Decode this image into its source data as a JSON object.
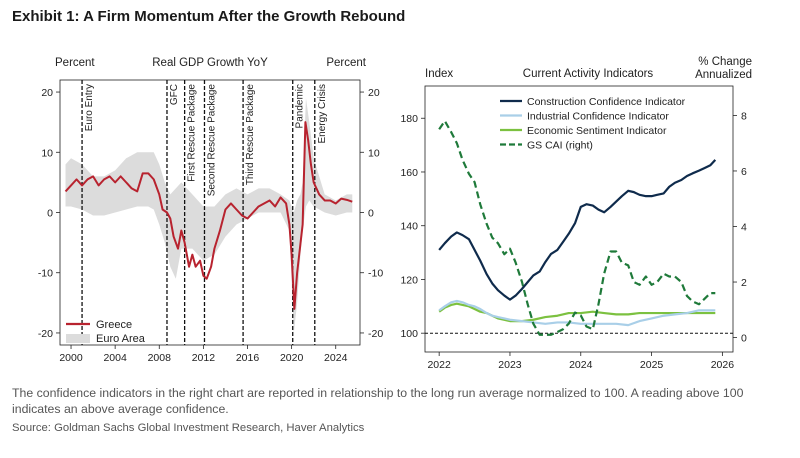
{
  "exhibit_title": "Exhibit 1: A Firm Momentum After the Growth Rebound",
  "footnote": "The confidence indicators in the right chart are reported in relationship to the long run average normalized to 100. A reading above 100 indicates an above average confidence.",
  "source": "Source: Goldman Sachs Global Investment Research, Haver Analytics",
  "chart_data": [
    {
      "type": "line",
      "title": "Real GDP Growth YoY",
      "ylabel_left": "Percent",
      "ylabel_right": "Percent",
      "xlim": [
        1999,
        2026.2
      ],
      "ylim": [
        -22,
        22
      ],
      "yticks": [
        -20,
        -10,
        0,
        10,
        20
      ],
      "xticks": [
        2000,
        2004,
        2008,
        2012,
        2016,
        2020,
        2024
      ],
      "events": [
        {
          "x": 2001.0,
          "label": "Euro Entry"
        },
        {
          "x": 2008.7,
          "label": "GFC"
        },
        {
          "x": 2010.3,
          "label": "First Rescue Package"
        },
        {
          "x": 2012.1,
          "label": "Second Rescue Package"
        },
        {
          "x": 2015.6,
          "label": "Third Rescue Package"
        },
        {
          "x": 2020.1,
          "label": "Pandemic"
        },
        {
          "x": 2022.1,
          "label": "Energy Crisis"
        }
      ],
      "series": [
        {
          "name": "Greece",
          "color": "#b8232f",
          "x": [
            1999.5,
            2000,
            2000.5,
            2001,
            2001.5,
            2002,
            2002.5,
            2003,
            2003.5,
            2004,
            2004.5,
            2005,
            2005.5,
            2006,
            2006.5,
            2007,
            2007.5,
            2008,
            2008.3,
            2008.7,
            2009,
            2009.3,
            2009.7,
            2010,
            2010.3,
            2010.7,
            2011,
            2011.3,
            2011.7,
            2012,
            2012.3,
            2012.7,
            2013,
            2013.5,
            2014,
            2014.5,
            2015,
            2015.5,
            2016,
            2016.5,
            2017,
            2017.5,
            2018,
            2018.5,
            2019,
            2019.5,
            2019.8,
            2020.0,
            2020.25,
            2020.5,
            2020.75,
            2021.0,
            2021.25,
            2021.5,
            2021.75,
            2022,
            2022.5,
            2023,
            2023.5,
            2024,
            2024.5,
            2025,
            2025.5
          ],
          "y": [
            3.5,
            4.5,
            5.5,
            4.5,
            5.5,
            6,
            4.5,
            5.5,
            6,
            5,
            6,
            5,
            4,
            3.5,
            6.5,
            6.5,
            5.5,
            3,
            0.5,
            0,
            -1,
            -4,
            -6,
            -3,
            -5,
            -9,
            -7,
            -9,
            -8,
            -10.5,
            -11,
            -9,
            -6,
            -3,
            0.5,
            1.5,
            0.5,
            -0.5,
            -1,
            0,
            1,
            1.5,
            2,
            1,
            2.5,
            1.5,
            -2,
            -7,
            -16,
            -10,
            -6,
            -2,
            15,
            12,
            8,
            5,
            3,
            2,
            2,
            1.5,
            2.3,
            2.1,
            1.8
          ]
        },
        {
          "name": "Euro Area",
          "color": "#dcdcdc",
          "x": [
            1999.5,
            2000,
            2001,
            2002,
            2003,
            2004,
            2005,
            2006,
            2007,
            2007.5,
            2008,
            2008.5,
            2009,
            2009.5,
            2010,
            2011,
            2012,
            2013,
            2014,
            2015,
            2016,
            2017,
            2018,
            2019,
            2019.8,
            2020.2,
            2020.5,
            2020.8,
            2021,
            2021.3,
            2021.6,
            2022,
            2023,
            2024,
            2025,
            2025.5
          ],
          "upper": [
            8,
            9,
            8,
            6,
            6,
            7,
            9,
            10,
            10,
            10,
            8,
            5,
            3,
            4,
            5,
            3,
            1,
            1,
            3,
            4,
            3,
            4,
            4,
            3,
            2,
            0,
            2,
            3,
            5,
            19,
            15,
            9,
            3,
            2,
            3,
            3
          ],
          "lower": [
            1,
            1,
            0.5,
            -0.5,
            -0.5,
            0,
            0.5,
            1,
            1,
            0.5,
            -2,
            -5,
            -9,
            -11,
            -6,
            -6,
            -8,
            -7,
            -4,
            -2,
            -1,
            0,
            0,
            0,
            -3,
            -20,
            -15,
            -7,
            -3,
            1,
            2,
            1,
            0,
            -0.5,
            0,
            0
          ]
        }
      ]
    },
    {
      "type": "line",
      "title": "Current Activity Indicators",
      "ylabel_left": "Index",
      "ylabel_right": "% Change\nAnnualized",
      "xlim": [
        2021.8,
        2026.15
      ],
      "ylim_left": [
        93,
        192
      ],
      "ylim_right": [
        -0.52,
        9.06
      ],
      "yticks_left": [
        100,
        120,
        140,
        160,
        180
      ],
      "yticks_right": [
        0,
        2,
        4,
        6,
        8
      ],
      "xticks": [
        2022,
        2023,
        2024,
        2025,
        2026
      ],
      "reference_line": 100,
      "series": [
        {
          "name": "Construction Confidence Indicator",
          "axis": "left",
          "color": "#0f2b4c",
          "x": [
            2022,
            2022.08,
            2022.17,
            2022.25,
            2022.33,
            2022.42,
            2022.5,
            2022.58,
            2022.67,
            2022.75,
            2022.83,
            2022.92,
            2023,
            2023.08,
            2023.17,
            2023.25,
            2023.33,
            2023.42,
            2023.5,
            2023.58,
            2023.67,
            2023.75,
            2023.83,
            2023.92,
            2024,
            2024.08,
            2024.17,
            2024.25,
            2024.33,
            2024.42,
            2024.5,
            2024.58,
            2024.67,
            2024.75,
            2024.83,
            2024.92,
            2025,
            2025.08,
            2025.17,
            2025.25,
            2025.33,
            2025.42,
            2025.5,
            2025.58,
            2025.67,
            2025.75,
            2025.83,
            2025.9
          ],
          "y": [
            131,
            133.5,
            136,
            137.5,
            136.5,
            135,
            131,
            127,
            122,
            118.5,
            116,
            114,
            112.5,
            114,
            116.5,
            119,
            121.5,
            123,
            126.5,
            129.5,
            131,
            134,
            137,
            141,
            147,
            148,
            147.5,
            146,
            145,
            147,
            149,
            151,
            153,
            152.5,
            151.5,
            151,
            151,
            151.5,
            152,
            154.5,
            156,
            157,
            158.5,
            159.5,
            160.5,
            161.5,
            162.5,
            164.5
          ]
        },
        {
          "name": "Industrial Confidence Indicator",
          "axis": "left",
          "color": "#a9cfe8",
          "x": [
            2022,
            2022.08,
            2022.17,
            2022.25,
            2022.33,
            2022.42,
            2022.5,
            2022.58,
            2022.67,
            2022.75,
            2022.83,
            2022.92,
            2023,
            2023.17,
            2023.33,
            2023.5,
            2023.67,
            2023.83,
            2024,
            2024.17,
            2024.33,
            2024.5,
            2024.67,
            2024.83,
            2025,
            2025.17,
            2025.33,
            2025.5,
            2025.67,
            2025.83,
            2025.9
          ],
          "y": [
            108.5,
            110,
            111.5,
            112,
            111.5,
            110.5,
            110,
            109,
            107.5,
            106.5,
            106,
            105.5,
            105,
            104.5,
            104,
            103.5,
            104,
            104,
            103.5,
            103.5,
            103.5,
            103.5,
            103,
            104.5,
            105.5,
            106.5,
            107,
            107.5,
            108.5,
            108.5,
            108.5
          ]
        },
        {
          "name": "Economic Sentiment Indicator",
          "axis": "left",
          "color": "#7cc140",
          "x": [
            2022,
            2022.08,
            2022.17,
            2022.25,
            2022.33,
            2022.42,
            2022.5,
            2022.58,
            2022.67,
            2022.75,
            2022.83,
            2022.92,
            2023,
            2023.17,
            2023.33,
            2023.5,
            2023.67,
            2023.83,
            2024,
            2024.17,
            2024.33,
            2024.5,
            2024.67,
            2024.83,
            2025,
            2025.17,
            2025.33,
            2025.5,
            2025.67,
            2025.83,
            2025.9
          ],
          "y": [
            108,
            109.5,
            110.5,
            111,
            110.5,
            110,
            109,
            108,
            107.5,
            106.5,
            105.5,
            105,
            104.5,
            104.5,
            105,
            106,
            106.5,
            107.5,
            107.5,
            108,
            107.5,
            107,
            107,
            107.5,
            107.5,
            107.5,
            107.5,
            107.5,
            107.5,
            107.5,
            107.5
          ]
        },
        {
          "name": "GS CAI (right)",
          "axis": "right",
          "color": "#1f7a3a",
          "dashed": true,
          "x": [
            2022,
            2022.08,
            2022.17,
            2022.25,
            2022.33,
            2022.42,
            2022.5,
            2022.58,
            2022.67,
            2022.75,
            2022.83,
            2022.92,
            2023,
            2023.08,
            2023.17,
            2023.25,
            2023.33,
            2023.42,
            2023.5,
            2023.58,
            2023.67,
            2023.75,
            2023.83,
            2023.92,
            2024,
            2024.08,
            2024.17,
            2024.25,
            2024.33,
            2024.42,
            2024.5,
            2024.58,
            2024.67,
            2024.75,
            2024.83,
            2024.92,
            2025,
            2025.08,
            2025.17,
            2025.25,
            2025.33,
            2025.42,
            2025.5,
            2025.58,
            2025.67,
            2025.75,
            2025.83,
            2025.9
          ],
          "y": [
            7.5,
            7.8,
            7.4,
            7.0,
            6.4,
            5.9,
            5.6,
            4.8,
            4.1,
            3.6,
            3.4,
            3.0,
            3.2,
            2.7,
            2.0,
            1.2,
            0.5,
            0.1,
            0.1,
            0.1,
            0.2,
            0.3,
            0.5,
            0.9,
            0.8,
            0.4,
            0.3,
            1.2,
            2.3,
            3.1,
            3.1,
            2.7,
            2.6,
            2.0,
            1.9,
            2.2,
            1.9,
            2.0,
            2.3,
            2.2,
            2.2,
            2.0,
            1.5,
            1.3,
            1.2,
            1.4,
            1.6,
            1.6
          ]
        }
      ]
    }
  ]
}
